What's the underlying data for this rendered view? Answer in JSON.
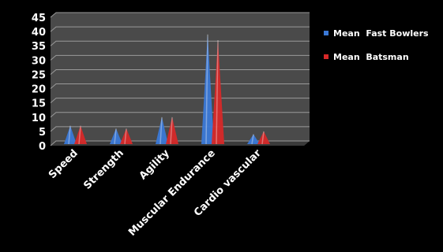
{
  "chart_data": {
    "type": "bar",
    "title": "",
    "xlabel": "",
    "ylabel": "",
    "categories": [
      "Speed",
      "Strength",
      "Agility",
      "Muscular Endurance",
      "Cardio vascular"
    ],
    "series": [
      {
        "name": "Mean  Fast Bowlers",
        "values": [
          7,
          6,
          10,
          39,
          4
        ],
        "color": "#3a78d6"
      },
      {
        "name": "Mean  Batsman",
        "values": [
          7,
          6,
          10,
          37,
          5
        ],
        "color": "#d62828"
      }
    ],
    "y_ticks": [
      0,
      5,
      10,
      15,
      20,
      25,
      30,
      35,
      40,
      45
    ],
    "ylim": [
      0,
      45
    ],
    "grid": true,
    "legend_position": "top-right",
    "style": "3d-cone",
    "colors": {
      "background": "#000000",
      "plot_wall": "#4a4a4a",
      "gridline": "#9a9a9a",
      "text": "#ffffff"
    }
  }
}
